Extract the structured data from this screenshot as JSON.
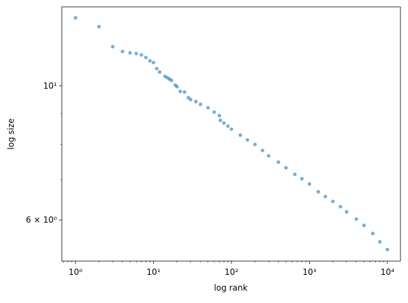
{
  "chart_data": {
    "type": "scatter",
    "x_label": "log rank",
    "y_label": "log size",
    "x_scale": "log",
    "y_scale": "log",
    "color": "#1f77b4",
    "opacity": 0.6,
    "x": [
      1,
      2,
      3,
      4,
      5,
      6,
      7,
      8,
      9,
      10,
      11,
      12,
      14,
      15,
      16,
      17,
      19,
      20,
      22,
      25,
      28,
      30,
      35,
      40,
      50,
      60,
      70,
      72,
      80,
      90,
      100,
      130,
      160,
      200,
      250,
      300,
      400,
      500,
      650,
      800,
      1000,
      1300,
      1600,
      2000,
      2500,
      3000,
      4000,
      5000,
      6500,
      8000,
      10000
    ],
    "values": [
      12.96,
      12.53,
      11.61,
      11.4,
      11.34,
      11.31,
      11.25,
      11.14,
      11.0,
      10.93,
      10.68,
      10.54,
      10.37,
      10.32,
      10.26,
      10.21,
      10.03,
      9.97,
      9.79,
      9.77,
      9.56,
      9.49,
      9.42,
      9.32,
      9.2,
      9.05,
      8.93,
      8.77,
      8.68,
      8.58,
      8.48,
      8.29,
      8.14,
      8.0,
      7.82,
      7.66,
      7.48,
      7.32,
      7.14,
      7.02,
      6.88,
      6.68,
      6.56,
      6.44,
      6.31,
      6.19,
      6.02,
      5.88,
      5.7,
      5.52,
      5.36
    ],
    "xlim": [
      0.667,
      14700
    ],
    "ylim": [
      5.13,
      13.51
    ],
    "xticks": [
      {
        "value": 1,
        "label": "10⁰"
      },
      {
        "value": 10,
        "label": "10¹"
      },
      {
        "value": 100,
        "label": "10²"
      },
      {
        "value": 1000,
        "label": "10³"
      },
      {
        "value": 10000,
        "label": "10⁴"
      }
    ],
    "yticks": [
      {
        "value": 6,
        "label": "6 × 10⁰"
      },
      {
        "value": 10,
        "label": "10¹"
      }
    ],
    "x_minor_ticks": [
      0.7,
      0.8,
      0.9,
      2,
      3,
      4,
      5,
      6,
      7,
      8,
      9,
      20,
      30,
      40,
      50,
      60,
      70,
      80,
      90,
      200,
      300,
      400,
      500,
      600,
      700,
      800,
      900,
      2000,
      3000,
      4000,
      5000,
      6000,
      7000,
      8000,
      9000
    ],
    "y_minor_ticks": [
      7,
      8,
      9
    ]
  }
}
